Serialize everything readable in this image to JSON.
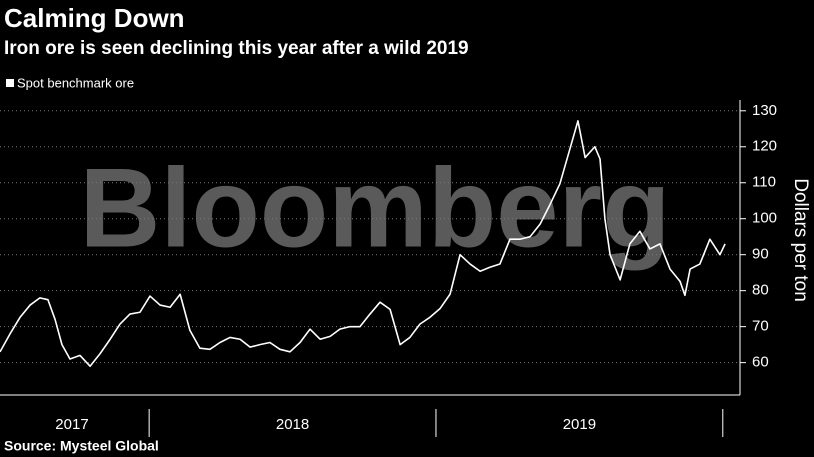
{
  "chart_data": {
    "type": "line",
    "title": "Calming Down",
    "subtitle": "Iron ore is seen declining this year after a wild 2019",
    "watermark": "Bloomberg",
    "ylabel": "Dollars per ton",
    "source": "Source: Mysteel Global",
    "legend_position": "top-left",
    "grid": true,
    "series": [
      {
        "name": "Spot benchmark ore",
        "color": "#ffffff",
        "x": [
          2017.48,
          2017.515,
          2017.55,
          2017.585,
          2017.619,
          2017.647,
          2017.672,
          2017.696,
          2017.724,
          2017.759,
          2017.794,
          2017.829,
          2017.864,
          2017.898,
          2017.933,
          2017.968,
          2018.003,
          2018.038,
          2018.073,
          2018.108,
          2018.142,
          2018.177,
          2018.212,
          2018.247,
          2018.282,
          2018.317,
          2018.352,
          2018.386,
          2018.421,
          2018.456,
          2018.491,
          2018.526,
          2018.561,
          2018.596,
          2018.631,
          2018.665,
          2018.7,
          2018.735,
          2018.77,
          2018.805,
          2018.84,
          2018.875,
          2018.909,
          2018.944,
          2018.979,
          2019.014,
          2019.049,
          2019.084,
          2019.119,
          2019.154,
          2019.188,
          2019.223,
          2019.258,
          2019.293,
          2019.328,
          2019.363,
          2019.398,
          2019.432,
          2019.467,
          2019.495,
          2019.52,
          2019.554,
          2019.572,
          2019.589,
          2019.607,
          2019.642,
          2019.676,
          2019.711,
          2019.746,
          2019.781,
          2019.816,
          2019.851,
          2019.868,
          2019.886,
          2019.92,
          2019.955,
          2019.99,
          2020.008
        ],
        "values": [
          63,
          68,
          72.6,
          76,
          78,
          77.5,
          72,
          65,
          61,
          62,
          59,
          62.5,
          66.5,
          70.7,
          73.5,
          74,
          78.5,
          76,
          75.4,
          79,
          69,
          64,
          63.7,
          65.6,
          67,
          66.5,
          64.3,
          65,
          65.6,
          63.7,
          63,
          65.6,
          69.3,
          66.5,
          67.3,
          69.3,
          70,
          70,
          73.5,
          76.8,
          74.8,
          65,
          67,
          70.7,
          72.6,
          75,
          79,
          90,
          87.4,
          85.4,
          86.5,
          87.4,
          94.3,
          94.3,
          95,
          98.5,
          104,
          109.7,
          119.4,
          127.2,
          117,
          120,
          116.6,
          100,
          90,
          83,
          93,
          96.5,
          91.6,
          93,
          86,
          82.6,
          78.7,
          86,
          87.4,
          94.3,
          90,
          93
        ]
      }
    ],
    "xlim": [
      2017.48,
      2020.06
    ],
    "xticks": [
      {
        "value": 2017.731,
        "label": "2017"
      },
      {
        "value": 2018.5,
        "label": "2018"
      },
      {
        "value": 2019.5,
        "label": "2019"
      }
    ],
    "xseparators": [
      2018,
      2019,
      2020
    ],
    "ylim": [
      51,
      133
    ],
    "yticks": [
      60,
      70,
      80,
      90,
      100,
      110,
      120,
      130
    ]
  }
}
